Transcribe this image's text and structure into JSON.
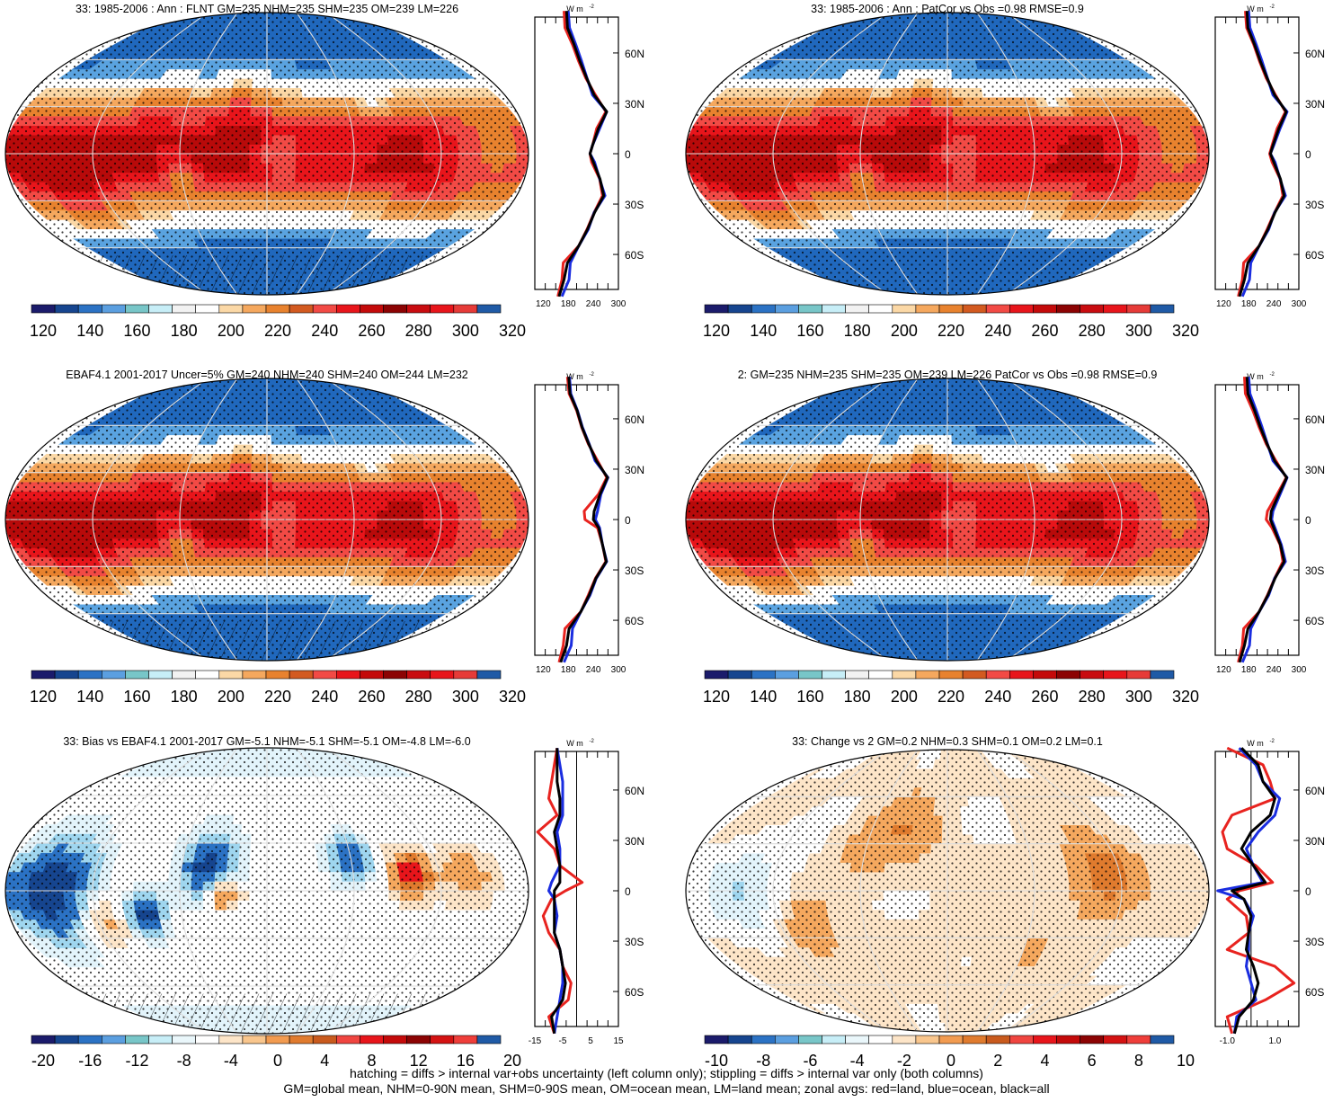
{
  "footnote": {
    "line1": "hatching = diffs > internal var+obs uncertainty (left column only); stippling = diffs > internal var only (both columns)",
    "line2": "GM=global mean, NHM=0-90N mean, SHM=0-90S mean, OM=ocean mean, LM=land mean; zonal avgs: red=land, blue=ocean, black=all"
  },
  "colors": {
    "land": "#e8231f",
    "ocean": "#1a2de0",
    "all": "#000000"
  },
  "chart_data": [
    {
      "type": "heatmap",
      "id": "p1",
      "title": "33: 1985-2006 : Ann : FLNT GM=235 NHM=235 SHM=235 OM=239 LM=226",
      "colorbar_labels": [
        "120",
        "140",
        "160",
        "180",
        "200",
        "220",
        "240",
        "260",
        "280",
        "300",
        "320"
      ],
      "unit_label": "W m",
      "lat_labels": [
        "60N",
        "30N",
        "0",
        "30S",
        "60S"
      ],
      "zonal_xticks": [
        "120",
        "180",
        "240",
        "300"
      ],
      "zonal_xlim": [
        100,
        300
      ],
      "zonal_lat": [
        85,
        75,
        65,
        55,
        45,
        35,
        25,
        15,
        5,
        0,
        -5,
        -15,
        -25,
        -35,
        -45,
        -55,
        -65,
        -75,
        -85
      ],
      "zonal": {
        "land": [
          170,
          172,
          190,
          205,
          222,
          245,
          270,
          248,
          238,
          232,
          236,
          255,
          262,
          242,
          225,
          205,
          168,
          165,
          155
        ],
        "ocean": [
          180,
          183,
          198,
          212,
          225,
          238,
          272,
          255,
          238,
          232,
          243,
          255,
          268,
          242,
          228,
          205,
          185,
          182,
          165
        ],
        "all": [
          176,
          178,
          194,
          208,
          224,
          242,
          272,
          252,
          238,
          232,
          240,
          256,
          265,
          243,
          226,
          205,
          178,
          170,
          158
        ]
      }
    },
    {
      "type": "heatmap",
      "id": "p2",
      "title": "33: 1985-2006 : Ann : PatCor vs Obs =0.98 RMSE=0.9",
      "colorbar_labels": [
        "120",
        "140",
        "160",
        "180",
        "200",
        "220",
        "240",
        "260",
        "280",
        "300",
        "320"
      ],
      "unit_label": "W m",
      "lat_labels": [
        "60N",
        "30N",
        "0",
        "30S",
        "60S"
      ],
      "zonal_xticks": [
        "120",
        "180",
        "240",
        "300"
      ],
      "zonal_xlim": [
        100,
        300
      ],
      "zonal_lat": [
        85,
        75,
        65,
        55,
        45,
        35,
        25,
        15,
        5,
        0,
        -5,
        -15,
        -25,
        -35,
        -45,
        -55,
        -65,
        -75,
        -85
      ],
      "zonal": {
        "land": [
          172,
          175,
          192,
          206,
          222,
          244,
          268,
          248,
          236,
          230,
          236,
          255,
          262,
          242,
          224,
          205,
          168,
          165,
          155
        ],
        "ocean": [
          180,
          183,
          198,
          212,
          225,
          238,
          272,
          255,
          240,
          232,
          243,
          255,
          268,
          242,
          228,
          205,
          185,
          182,
          165
        ],
        "all": [
          176,
          178,
          194,
          208,
          224,
          242,
          270,
          252,
          238,
          232,
          240,
          256,
          265,
          243,
          226,
          205,
          178,
          170,
          158
        ]
      }
    },
    {
      "type": "heatmap",
      "id": "p3",
      "title": "EBAF4.1 2001-2017 Uncer=5% GM=240 NHM=240 SHM=240 OM=244 LM=232",
      "colorbar_labels": [
        "120",
        "140",
        "160",
        "180",
        "200",
        "220",
        "240",
        "260",
        "280",
        "300",
        "320"
      ],
      "unit_label": "W m",
      "lat_labels": [
        "60N",
        "30N",
        "0",
        "30S",
        "60S"
      ],
      "zonal_xticks": [
        "120",
        "180",
        "240",
        "300"
      ],
      "zonal_xlim": [
        100,
        300
      ],
      "zonal_lat": [
        85,
        75,
        65,
        55,
        45,
        35,
        25,
        15,
        5,
        0,
        -5,
        -15,
        -25,
        -35,
        -45,
        -55,
        -65,
        -75,
        -85
      ],
      "zonal": {
        "land": [
          178,
          182,
          200,
          212,
          228,
          250,
          272,
          252,
          218,
          220,
          250,
          262,
          270,
          245,
          228,
          210,
          172,
          168,
          158
        ],
        "ocean": [
          183,
          186,
          202,
          214,
          230,
          244,
          275,
          258,
          250,
          245,
          255,
          262,
          272,
          247,
          232,
          210,
          190,
          187,
          170
        ],
        "all": [
          181,
          184,
          201,
          213,
          229,
          247,
          274,
          256,
          242,
          240,
          253,
          262,
          271,
          246,
          230,
          210,
          182,
          176,
          162
        ]
      }
    },
    {
      "type": "heatmap",
      "id": "p4",
      "title": "2: GM=235 NHM=235 SHM=235 OM=239 LM=226 PatCor vs Obs =0.98 RMSE=0.9",
      "colorbar_labels": [
        "120",
        "140",
        "160",
        "180",
        "200",
        "220",
        "240",
        "260",
        "280",
        "300",
        "320"
      ],
      "unit_label": "W m",
      "lat_labels": [
        "60N",
        "30N",
        "0",
        "30S",
        "60S"
      ],
      "zonal_xticks": [
        "120",
        "180",
        "240",
        "300"
      ],
      "zonal_xlim": [
        100,
        300
      ],
      "zonal_lat": [
        85,
        75,
        65,
        55,
        45,
        35,
        25,
        15,
        5,
        0,
        -5,
        -15,
        -25,
        -35,
        -45,
        -55,
        -65,
        -75,
        -85
      ],
      "zonal": {
        "land": [
          170,
          172,
          190,
          205,
          222,
          245,
          270,
          248,
          225,
          222,
          236,
          255,
          262,
          242,
          225,
          205,
          168,
          165,
          155
        ],
        "ocean": [
          180,
          183,
          198,
          212,
          225,
          238,
          272,
          255,
          238,
          235,
          243,
          258,
          268,
          242,
          228,
          205,
          185,
          182,
          165
        ],
        "all": [
          176,
          178,
          194,
          208,
          224,
          242,
          271,
          252,
          234,
          232,
          240,
          256,
          265,
          243,
          226,
          205,
          178,
          170,
          158
        ]
      }
    },
    {
      "type": "heatmap",
      "id": "p5",
      "title": "33: Bias vs EBAF4.1 2001-2017 GM=-5.1 NHM=-5.1 SHM=-5.1 OM=-4.8 LM=-6.0",
      "colorbar_labels": [
        "-20",
        "-16",
        "-12",
        "-8",
        "-4",
        "0",
        "4",
        "8",
        "12",
        "16",
        "20"
      ],
      "unit_label": "W m",
      "lat_labels": [
        "60N",
        "30N",
        "0",
        "30S",
        "60S"
      ],
      "zonal_xticks": [
        "-15",
        "-5",
        "5",
        "15"
      ],
      "zonal_xlim": [
        -15,
        15
      ],
      "zonal_zero": 0,
      "zonal_lat": [
        85,
        75,
        65,
        55,
        45,
        35,
        25,
        15,
        5,
        0,
        -5,
        -15,
        -25,
        -35,
        -45,
        -55,
        -65,
        -75,
        -85
      ],
      "zonal": {
        "land": [
          -7,
          -8,
          -9,
          -10,
          -7,
          -14,
          -8,
          -6,
          2,
          -4,
          -9,
          -12,
          -10,
          -6,
          -5,
          -2,
          -3,
          -10,
          -8
        ],
        "ocean": [
          -7,
          -6,
          -5,
          -5,
          -5,
          -7,
          -6,
          -6,
          -9,
          -10,
          -8,
          -7,
          -8,
          -6,
          -5,
          -5,
          -6,
          -7,
          -8
        ],
        "all": [
          -7,
          -7,
          -7,
          -6,
          -6,
          -8,
          -7,
          -6,
          -6,
          -8,
          -8,
          -8,
          -8,
          -6,
          -5,
          -4,
          -5,
          -9,
          -8
        ]
      }
    },
    {
      "type": "heatmap",
      "id": "p6",
      "title": "33: Change vs 2 GM=0.2 NHM=0.3 SHM=0.1 OM=0.2 LM=0.1",
      "colorbar_labels": [
        "-10",
        "-8",
        "-6",
        "-4",
        "-2",
        "0",
        "2",
        "4",
        "6",
        "8",
        "10"
      ],
      "unit_label": "W m",
      "lat_labels": [
        "60N",
        "30N",
        "0",
        "30S",
        "60S"
      ],
      "zonal_xticks": [
        "-1.0",
        "1.0"
      ],
      "zonal_xlim": [
        -1.5,
        2.0
      ],
      "zonal_zero": 0,
      "zonal_lat": [
        85,
        75,
        65,
        55,
        45,
        35,
        25,
        15,
        5,
        0,
        -5,
        -15,
        -25,
        -35,
        -45,
        -55,
        -65,
        -75,
        -85
      ],
      "zonal": {
        "land": [
          -1.0,
          0.5,
          0.8,
          1.0,
          -0.8,
          -1.2,
          -1.0,
          0.2,
          0.9,
          -0.5,
          -1.0,
          -0.2,
          -0.1,
          -1.0,
          1.0,
          1.8,
          0.6,
          -1.0,
          -0.8
        ],
        "ocean": [
          -0.5,
          0.2,
          0.5,
          1.2,
          1.0,
          0.3,
          -0.2,
          0.1,
          0.5,
          -1.4,
          -0.3,
          0.1,
          -0.1,
          -0.1,
          -0.2,
          0.0,
          0.2,
          -0.6,
          -0.7
        ],
        "all": [
          -0.4,
          0.3,
          0.5,
          1.0,
          0.8,
          0.0,
          -0.4,
          0.1,
          0.6,
          -0.8,
          -0.3,
          0.0,
          -0.1,
          -0.2,
          0.1,
          0.3,
          0.1,
          -0.5,
          -0.7
        ]
      }
    }
  ]
}
